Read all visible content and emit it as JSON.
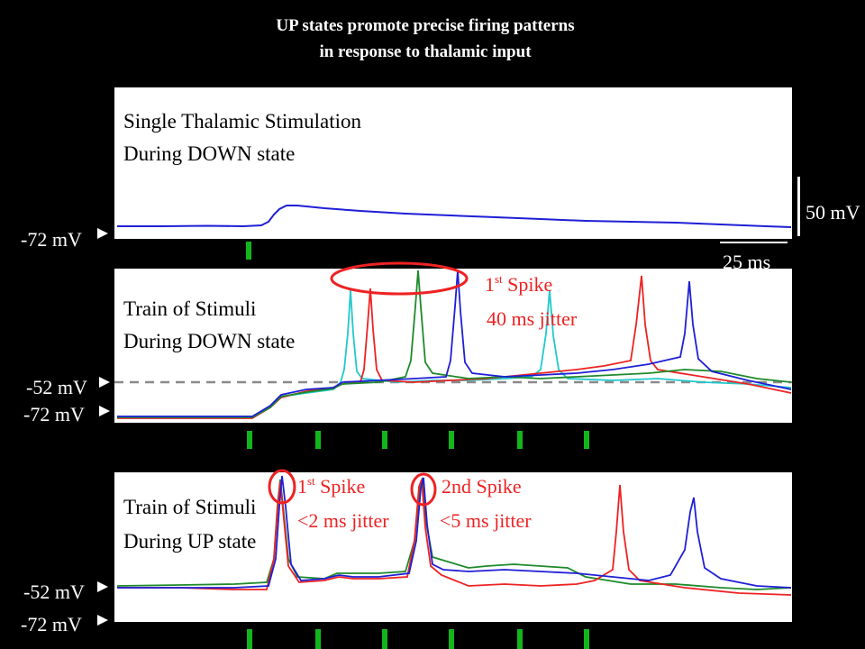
{
  "title": {
    "line1": "UP states promote precise firing patterns",
    "line2": "in response to thalamic input"
  },
  "colors": {
    "background": "#000000",
    "panel": "#ffffff",
    "trace_blue": "#1f1fd6",
    "trace_red": "#ee2222",
    "trace_green": "#1e8a2a",
    "trace_cyan": "#22c8cc",
    "stim_marker": "#13b51c",
    "annotation": "#ee2222",
    "threshold_line": "#8a8a8a"
  },
  "scale_bar": {
    "voltage": "50 mV",
    "time": "25 ms"
  },
  "panels": [
    {
      "label_line1": "Single Thalamic Stimulation",
      "label_line2": "During DOWN state",
      "voltage_markers": [
        "-72 mV"
      ],
      "stimuli": 1
    },
    {
      "label_line1": "Train of Stimuli",
      "label_line2": "During DOWN state",
      "voltage_markers": [
        "-52 mV",
        "-72 mV"
      ],
      "stimuli": 6,
      "annotation": {
        "superscript_num": "1",
        "superscript": "st",
        "text": " Spike",
        "jitter": "40 ms jitter"
      }
    },
    {
      "label_line1": "Train of Stimuli",
      "label_line2": "During UP state",
      "voltage_markers": [
        "-52 mV",
        "-72 mV"
      ],
      "stimuli": 6,
      "annotations": [
        {
          "superscript_num": "1",
          "superscript": "st",
          "text": " Spike",
          "jitter": "<2 ms jitter"
        },
        {
          "text": "2nd Spike",
          "jitter": "<5 ms jitter"
        }
      ]
    }
  ]
}
